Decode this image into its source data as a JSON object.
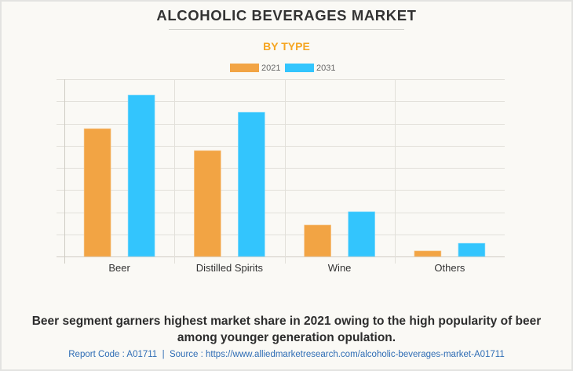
{
  "header": {
    "title": "ALCOHOLIC BEVERAGES MARKET",
    "subtitle": "BY TYPE"
  },
  "colors": {
    "series_2021": "#f2a444",
    "series_2031": "#33c5fd",
    "title": "#333333",
    "subtitle": "#f5a623",
    "footer": "#2f6db5",
    "grid": "#e2e0da",
    "axis": "#cfccc4"
  },
  "chart_data": {
    "type": "bar",
    "title": "ALCOHOLIC BEVERAGES MARKET",
    "subtitle": "BY TYPE",
    "xlabel": "",
    "ylabel": "",
    "categories": [
      "Beer",
      "Distilled Spirits",
      "Wine",
      "Others"
    ],
    "series": [
      {
        "name": "2021",
        "values": [
          5.77,
          4.78,
          1.42,
          0.25
        ]
      },
      {
        "name": "2031",
        "values": [
          7.29,
          6.51,
          2.02,
          0.6
        ]
      }
    ],
    "ylim": [
      0,
      8
    ],
    "y_units": "relative (no y-axis tick labels shown; values in gridline units)",
    "grid": true,
    "gridline_count": 8,
    "legend": {
      "placement": "top-center",
      "entries": [
        "2021",
        "2031"
      ]
    }
  },
  "caption": "Beer segment garners highest market share in 2021 owing to the high popularity of beer among younger generation opulation.",
  "footer": {
    "report_code": "Report Code : A01711",
    "separator": "|",
    "source": "Source : https://www.alliedmarketresearch.com/alcoholic-beverages-market-A01711"
  }
}
